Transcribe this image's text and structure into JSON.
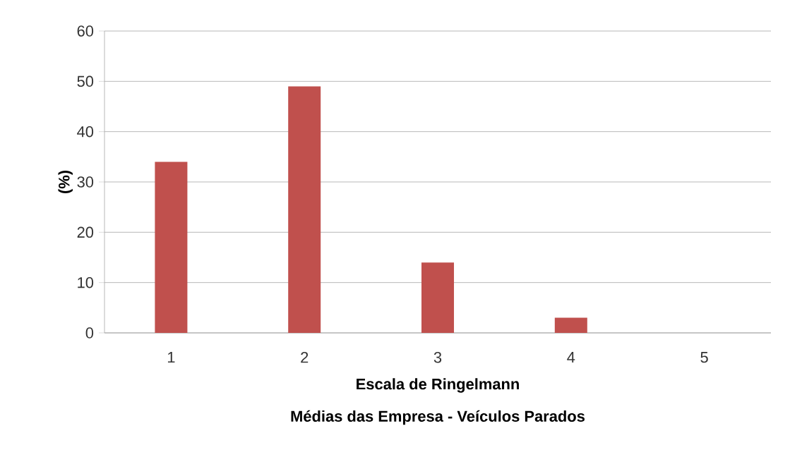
{
  "chart_data": {
    "type": "bar",
    "xlabel": "Escala de Ringelmann",
    "ylabel": "(%)",
    "annotations": [
      "Médias das Empresa - Veículos Parados"
    ],
    "categories": [
      "1",
      "2",
      "3",
      "4",
      "5"
    ],
    "values": [
      34,
      49,
      14,
      3,
      0
    ],
    "color": "#c0504d",
    "ylim": [
      0,
      60
    ],
    "yticks": [
      0,
      10,
      20,
      30,
      40,
      50,
      60
    ],
    "grid": "y"
  }
}
